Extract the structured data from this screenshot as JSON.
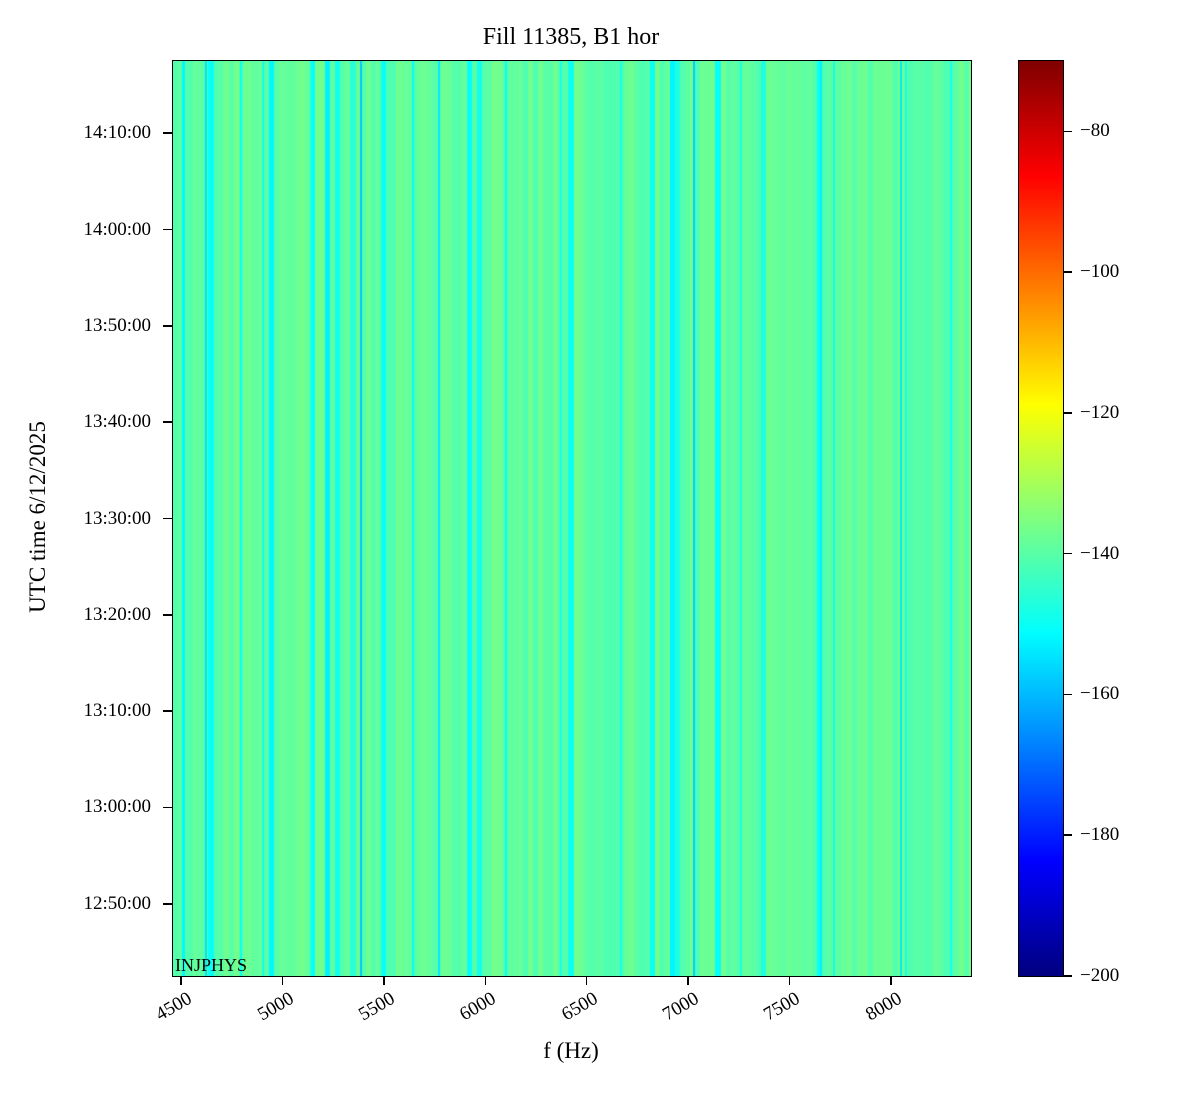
{
  "chart_data": {
    "type": "heatmap",
    "title": "Fill 11385, B1 hor",
    "xlabel": "f (Hz)",
    "ylabel": "UTC time 6/12/2025",
    "annotation": "INJPHYS",
    "x_range_hz": [
      4460,
      8395
    ],
    "x_ticks_hz": [
      4500,
      5000,
      5500,
      6000,
      6500,
      7000,
      7500,
      8000
    ],
    "y_ticks": [
      "14:10:00",
      "14:00:00",
      "13:50:00",
      "13:40:00",
      "13:30:00",
      "13:20:00",
      "13:10:00",
      "13:00:00",
      "12:50:00"
    ],
    "y_range": [
      "12:42:30",
      "14:17:30"
    ],
    "colormap": "jet",
    "grid": false,
    "color_scale": {
      "vmin": -200,
      "vmax": -70,
      "ticks": [
        -80,
        -100,
        -120,
        -140,
        -160,
        -180,
        -200
      ]
    },
    "field": {
      "base_value_db": -139,
      "band_width_hz": 25,
      "band_variation_db": 2.5,
      "dip_probability": 0.09,
      "dip_value_range_db": [
        -146,
        -153
      ],
      "noise_seed": 11385,
      "stripes": [
        {
          "f_hz": 4509,
          "width_hz": 14,
          "value_db": -152
        },
        {
          "f_hz": 4623,
          "width_hz": 12,
          "value_db": -155
        },
        {
          "f_hz": 4795,
          "width_hz": 10,
          "value_db": -150
        },
        {
          "f_hz": 4904,
          "width_hz": 10,
          "value_db": -149
        },
        {
          "f_hz": 5140,
          "width_hz": 10,
          "value_db": -148
        },
        {
          "f_hz": 5387,
          "width_hz": 12,
          "value_db": -158
        },
        {
          "f_hz": 5643,
          "width_hz": 10,
          "value_db": -151
        },
        {
          "f_hz": 5771,
          "width_hz": 12,
          "value_db": -154
        },
        {
          "f_hz": 6102,
          "width_hz": 10,
          "value_db": -150
        },
        {
          "f_hz": 6373,
          "width_hz": 8,
          "value_db": -148
        },
        {
          "f_hz": 6669,
          "width_hz": 8,
          "value_db": -148
        },
        {
          "f_hz": 7029,
          "width_hz": 12,
          "value_db": -158
        },
        {
          "f_hz": 7260,
          "width_hz": 8,
          "value_db": -148
        },
        {
          "f_hz": 7655,
          "width_hz": 12,
          "value_db": -153
        },
        {
          "f_hz": 7719,
          "width_hz": 10,
          "value_db": -150
        },
        {
          "f_hz": 8049,
          "width_hz": 12,
          "value_db": -154
        },
        {
          "f_hz": 8074,
          "width_hz": 8,
          "value_db": -150
        },
        {
          "f_hz": 8296,
          "width_hz": 10,
          "value_db": -149
        }
      ]
    }
  }
}
